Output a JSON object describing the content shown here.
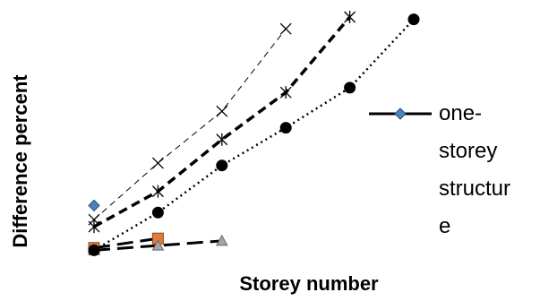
{
  "chart_data": {
    "type": "line",
    "xlabel": "Storey number",
    "ylabel": "Difference percent",
    "categories": [
      null,
      null,
      null,
      null,
      null,
      null
    ],
    "ylim": [
      0,
      100
    ],
    "legend": "right",
    "series": [
      {
        "name": "one-storey structure",
        "color": "#4f81bd",
        "line_color": "#000000",
        "marker": "diamond",
        "dash": "solid",
        "values": [
          20,
          null,
          null,
          null,
          null,
          null
        ]
      },
      {
        "color": "#e07b39",
        "line_color": "#000000",
        "marker": "square",
        "dash": "long",
        "values": [
          2,
          6,
          null,
          null,
          null,
          null
        ]
      },
      {
        "color": "#a5a5a5",
        "line_color": "#000000",
        "marker": "triangle",
        "dash": "long",
        "values": [
          1,
          3,
          5,
          null,
          null,
          null
        ]
      },
      {
        "color": "#000000",
        "line_color": "#000000",
        "marker": "x",
        "dash": "thin",
        "values": [
          14,
          38,
          60,
          95,
          null,
          null
        ]
      },
      {
        "color": "#000000",
        "line_color": "#000000",
        "marker": "star",
        "dash": "thick",
        "values": [
          11,
          26,
          48,
          68,
          100,
          null
        ]
      },
      {
        "color": "#000000",
        "line_color": "#000000",
        "marker": "circle",
        "dash": "dot",
        "values": [
          1,
          17,
          37,
          53,
          70,
          99
        ]
      }
    ]
  }
}
